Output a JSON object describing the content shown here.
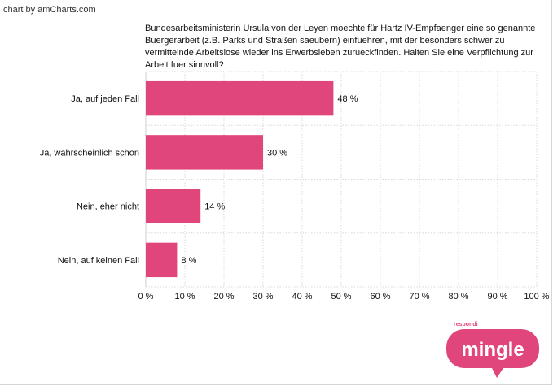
{
  "header": {
    "credit": "chart by amCharts.com",
    "question": "Bundesarbeitsministerin Ursula von der Leyen moechte für Hartz IV-Empfaenger eine so genannte Buergerarbeit (z.B. Parks und Straßen saeubern) einfuehren, mit der besonders schwer zu vermittelnde Arbeitslose wieder ins Erwerbsleben zurueckfinden. Halten Sie eine Verpflichtung zur Arbeit fuer sinnvoll?"
  },
  "chart_data": {
    "type": "bar",
    "orientation": "horizontal",
    "title": "Bundesarbeitsministerin Ursula von der Leyen moechte für Hartz IV-Empfaenger eine so genannte Buergerarbeit (z.B. Parks und Straßen saeubern) einfuehren, mit der besonders schwer zu vermittelnde Arbeitslose wieder ins Erwerbsleben zurueckfinden. Halten Sie eine Verpflichtung zur Arbeit fuer sinnvoll?",
    "categories": [
      "Ja, auf jeden Fall",
      "Ja, wahrscheinlich schon",
      "Nein, eher nicht",
      "Nein, auf keinen Fall"
    ],
    "values": [
      48,
      30,
      14,
      8
    ],
    "value_labels": [
      "48 %",
      "30 %",
      "14 %",
      "8 %"
    ],
    "xlim": [
      0,
      100
    ],
    "x_ticks": [
      0,
      10,
      20,
      30,
      40,
      50,
      60,
      70,
      80,
      90,
      100
    ],
    "x_tick_labels": [
      "0 %",
      "10 %",
      "20 %",
      "30 %",
      "40 %",
      "50 %",
      "60 %",
      "70 %",
      "80 %",
      "90 %",
      "100 %"
    ],
    "grid": true,
    "bar_color": "#e0457b"
  },
  "logo": {
    "small_text": "respondi",
    "main_text": "mingle",
    "color": "#e0457b"
  }
}
